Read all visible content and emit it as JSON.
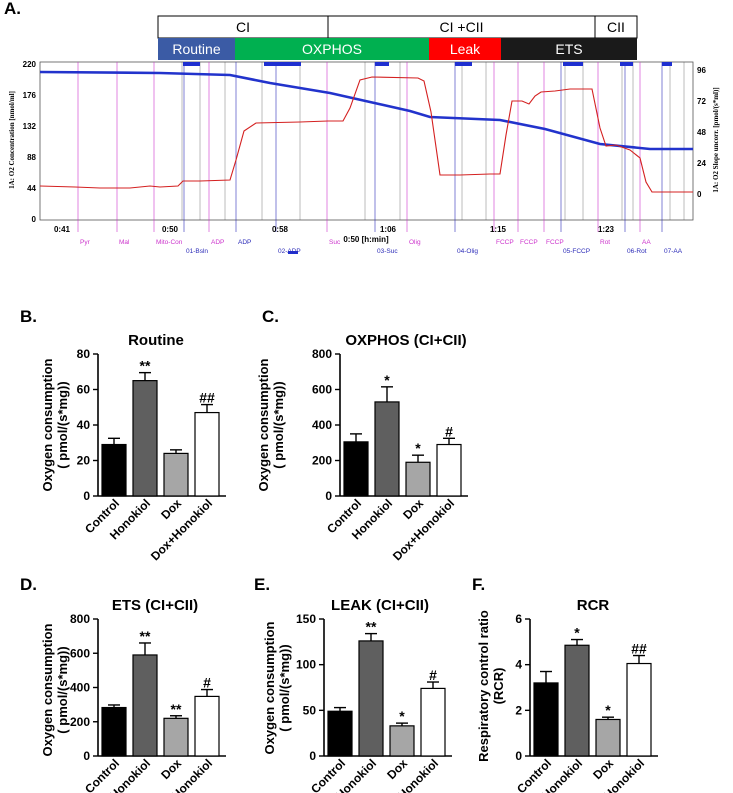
{
  "panelA": {
    "letter": "A.",
    "phases_top": [
      {
        "label": "CI",
        "color": "#ffffff",
        "text_color": "#000000"
      },
      {
        "label": "CI +CII",
        "color": "#ffffff",
        "text_color": "#000000"
      },
      {
        "label": "CII",
        "color": "#ffffff",
        "text_color": "#000000"
      }
    ],
    "phases_bottom": [
      {
        "label": "Routine",
        "color": "#3b5ba5",
        "text_color": "#ffffff"
      },
      {
        "label": "OXPHOS",
        "color": "#00b050",
        "text_color": "#ffffff"
      },
      {
        "label": "Leak",
        "color": "#ff0000",
        "text_color": "#ffffff"
      },
      {
        "label": "ETS",
        "color": "#1a1a1a",
        "text_color": "#ffffff"
      }
    ],
    "left_axis_title": "1A: O2 Concentration [nmol/ml]",
    "right_axis_title": "1A: O2 Slope uncorr. [pmol/(s*ml)]",
    "x_axis_title": "0:50 [h:min]",
    "left_ticks": [
      "220",
      "176",
      "132",
      "88",
      "44",
      "0"
    ],
    "right_ticks": [
      "96",
      "72",
      "48",
      "24",
      "0"
    ],
    "x_ticks": [
      "0:41",
      "0:50",
      "0:58",
      "1:06",
      "1:15",
      "1:23"
    ],
    "events": [
      {
        "label": "Pyr",
        "color": "#cc33cc"
      },
      {
        "label": "Mal",
        "color": "#cc33cc"
      },
      {
        "label": "Mito-Con",
        "color": "#cc33cc"
      },
      {
        "label": "01-Bsln",
        "color": "#2b2bb8"
      },
      {
        "label": "ADP",
        "color": "#cc33cc"
      },
      {
        "label": "ADP",
        "color": "#2b2bb8"
      },
      {
        "label": "02-ADP",
        "color": "#2b2bb8"
      },
      {
        "label": "Suc",
        "color": "#cc33cc"
      },
      {
        "label": "03-Suc",
        "color": "#2b2bb8"
      },
      {
        "label": "Olig",
        "color": "#cc33cc"
      },
      {
        "label": "04-Olig",
        "color": "#2b2bb8"
      },
      {
        "label": "FCCP",
        "color": "#cc33cc"
      },
      {
        "label": "FCCP",
        "color": "#cc33cc"
      },
      {
        "label": "FCCP",
        "color": "#cc33cc"
      },
      {
        "label": "05-FCCP",
        "color": "#2b2bb8"
      },
      {
        "label": "Rot",
        "color": "#cc33cc"
      },
      {
        "label": "06-Rot",
        "color": "#2b2bb8"
      },
      {
        "label": "AA",
        "color": "#cc33cc"
      },
      {
        "label": "07-AA",
        "color": "#2b2bb8"
      }
    ],
    "series_colors": {
      "o2_concentration": "#2233cc",
      "o2_slope": "#d42020"
    }
  },
  "chart_data": [
    {
      "panel": "B.",
      "type": "bar",
      "title": "Routine",
      "ylabel": "Oxygen consumption ( pmol/(s*mg))",
      "categories": [
        "Control",
        "Honokiol",
        "Dox",
        "Dox+Honokiol"
      ],
      "values": [
        29,
        65,
        24,
        47
      ],
      "errors": [
        3.5,
        4.5,
        2,
        4.5
      ],
      "significance": [
        "",
        "**",
        "",
        "##"
      ],
      "ylim": [
        0,
        80
      ],
      "yticks": [
        "0",
        "20",
        "40",
        "60",
        "80"
      ],
      "colors": [
        "#000000",
        "#5f5f5f",
        "#a6a6a6",
        "#ffffff"
      ]
    },
    {
      "panel": "C.",
      "type": "bar",
      "title": "OXPHOS (CI+CII)",
      "ylabel": "Oxygen consumption ( pmol/(s*mg))",
      "categories": [
        "Control",
        "Honokiol",
        "Dox",
        "Dox+Honokiol"
      ],
      "values": [
        305,
        530,
        190,
        290
      ],
      "errors": [
        45,
        85,
        40,
        35
      ],
      "significance": [
        "",
        "*",
        "*",
        "#"
      ],
      "ylim": [
        0,
        800
      ],
      "yticks": [
        "0",
        "200",
        "400",
        "600",
        "800"
      ],
      "colors": [
        "#000000",
        "#5f5f5f",
        "#a6a6a6",
        "#ffffff"
      ]
    },
    {
      "panel": "D.",
      "type": "bar",
      "title": "ETS (CI+CII)",
      "ylabel": "Oxygen consumption ( pmol/(s*mg))",
      "categories": [
        "Control",
        "Honokiol",
        "Dox",
        "Dox+Honokiol"
      ],
      "values": [
        283,
        590,
        220,
        348
      ],
      "errors": [
        15,
        70,
        15,
        40
      ],
      "significance": [
        "",
        "**",
        "**",
        "#"
      ],
      "ylim": [
        0,
        800
      ],
      "yticks": [
        "0",
        "200",
        "400",
        "600",
        "800"
      ],
      "colors": [
        "#000000",
        "#5f5f5f",
        "#a6a6a6",
        "#ffffff"
      ]
    },
    {
      "panel": "E.",
      "type": "bar",
      "title": "LEAK (CI+CII)",
      "ylabel": "Oxygen consumption ( pmol/(s*mg))",
      "categories": [
        "Control",
        "Honokiol",
        "Dox",
        "Dox+Honokiol"
      ],
      "values": [
        49,
        126,
        33,
        74
      ],
      "errors": [
        4,
        8,
        3,
        7
      ],
      "significance": [
        "",
        "**",
        "*",
        "#"
      ],
      "ylim": [
        0,
        150
      ],
      "yticks": [
        "0",
        "50",
        "100",
        "150"
      ],
      "colors": [
        "#000000",
        "#5f5f5f",
        "#a6a6a6",
        "#ffffff"
      ]
    },
    {
      "panel": "F.",
      "type": "bar",
      "title": "RCR",
      "ylabel": "Respiratory control ratio (RCR)",
      "categories": [
        "Control",
        "Honokiol",
        "Dox",
        "Dox+Honokiol"
      ],
      "values": [
        3.2,
        4.85,
        1.6,
        4.05
      ],
      "errors": [
        0.5,
        0.25,
        0.1,
        0.35
      ],
      "significance": [
        "",
        "*",
        "*",
        "##"
      ],
      "ylim": [
        0,
        6
      ],
      "yticks": [
        "0",
        "2",
        "4",
        "6"
      ],
      "colors": [
        "#000000",
        "#5f5f5f",
        "#a6a6a6",
        "#ffffff"
      ]
    }
  ]
}
